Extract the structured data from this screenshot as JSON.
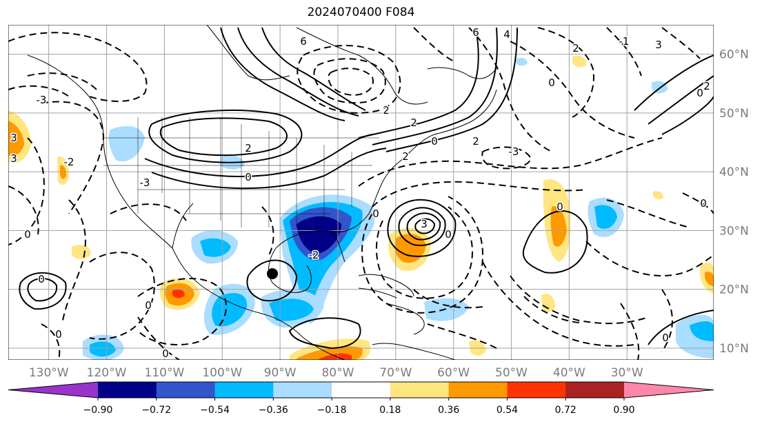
{
  "title": "2024070400 F084",
  "map": {
    "projection": "plate-carree",
    "lon_range": [
      -137,
      -15
    ],
    "lat_range": [
      8,
      65
    ],
    "gridlines": true,
    "lat_ticks": [
      {
        "value": 60,
        "label": "60°N"
      },
      {
        "value": 50,
        "label": "50°N"
      },
      {
        "value": 40,
        "label": "40°N"
      },
      {
        "value": 30,
        "label": "30°N"
      },
      {
        "value": 20,
        "label": "20°N"
      },
      {
        "value": 10,
        "label": "10°N"
      }
    ],
    "lon_ticks": [
      {
        "value": -130,
        "label": "130°W"
      },
      {
        "value": -120,
        "label": "120°W"
      },
      {
        "value": -110,
        "label": "110°W"
      },
      {
        "value": -100,
        "label": "100°W"
      },
      {
        "value": -90,
        "label": "90°W"
      },
      {
        "value": -80,
        "label": "80°W"
      },
      {
        "value": -70,
        "label": "70°W"
      },
      {
        "value": -60,
        "label": "60°W"
      },
      {
        "value": -50,
        "label": "50°W"
      },
      {
        "value": -40,
        "label": "40°W"
      },
      {
        "value": -30,
        "label": "30°W"
      }
    ],
    "contour_labels": [
      "-3",
      "-2",
      "0",
      "2",
      "3",
      "-1",
      "4",
      "6"
    ]
  },
  "colorbar": {
    "placement": "bottom",
    "extend": "both",
    "colors": [
      "#9933cc",
      "#000088",
      "#3355cc",
      "#00bbff",
      "#aaddff",
      "#ffffff",
      "#ffe680",
      "#ff9900",
      "#ff3300",
      "#aa2222",
      "#ff88aa"
    ],
    "tick_labels": [
      "−0.90",
      "−0.72",
      "−0.54",
      "−0.36",
      "−0.18",
      "0.18",
      "0.36",
      "0.54",
      "0.72",
      "0.90"
    ]
  }
}
